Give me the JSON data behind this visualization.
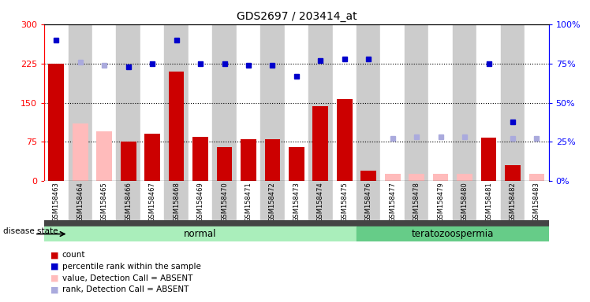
{
  "title": "GDS2697 / 203414_at",
  "samples": [
    "GSM158463",
    "GSM158464",
    "GSM158465",
    "GSM158466",
    "GSM158467",
    "GSM158468",
    "GSM158469",
    "GSM158470",
    "GSM158471",
    "GSM158472",
    "GSM158473",
    "GSM158474",
    "GSM158475",
    "GSM158476",
    "GSM158477",
    "GSM158478",
    "GSM158479",
    "GSM158480",
    "GSM158481",
    "GSM158482",
    "GSM158483"
  ],
  "count_present": [
    224,
    null,
    null,
    75,
    90,
    210,
    85,
    65,
    80,
    80,
    65,
    143,
    157,
    20,
    null,
    null,
    null,
    null,
    83,
    30,
    null
  ],
  "count_absent": [
    null,
    110,
    95,
    null,
    null,
    null,
    null,
    null,
    null,
    null,
    null,
    null,
    null,
    null,
    14,
    14,
    14,
    14,
    null,
    null,
    14
  ],
  "rank_present": [
    90,
    null,
    null,
    73,
    75,
    90,
    75,
    75,
    74,
    74,
    67,
    77,
    78,
    78,
    null,
    null,
    null,
    null,
    75,
    38,
    null
  ],
  "rank_absent": [
    null,
    76,
    74,
    null,
    null,
    null,
    null,
    null,
    null,
    null,
    null,
    null,
    null,
    null,
    27,
    28,
    28,
    28,
    null,
    27,
    27
  ],
  "group_normal_indices": [
    0,
    1,
    2,
    3,
    4,
    5,
    6,
    7,
    8,
    9,
    10,
    11,
    12
  ],
  "group_terato_indices": [
    13,
    14,
    15,
    16,
    17,
    18,
    19,
    20
  ],
  "ylim_left": [
    0,
    300
  ],
  "ylim_right": [
    0,
    100
  ],
  "yticks_left": [
    0,
    75,
    150,
    225,
    300
  ],
  "yticks_right": [
    0,
    25,
    50,
    75,
    100
  ],
  "bar_color": "#cc0000",
  "bar_absent_color": "#ffbbbb",
  "dot_color": "#0000cc",
  "dot_absent_color": "#aaaadd",
  "bg_color_alt": "#cccccc",
  "normal_group_color": "#aaeebb",
  "terato_group_color": "#66cc88",
  "disease_label": "disease state",
  "legend_labels": [
    "count",
    "percentile rank within the sample",
    "value, Detection Call = ABSENT",
    "rank, Detection Call = ABSENT"
  ],
  "legend_colors": [
    "#cc0000",
    "#0000cc",
    "#ffbbbb",
    "#aaaadd"
  ]
}
